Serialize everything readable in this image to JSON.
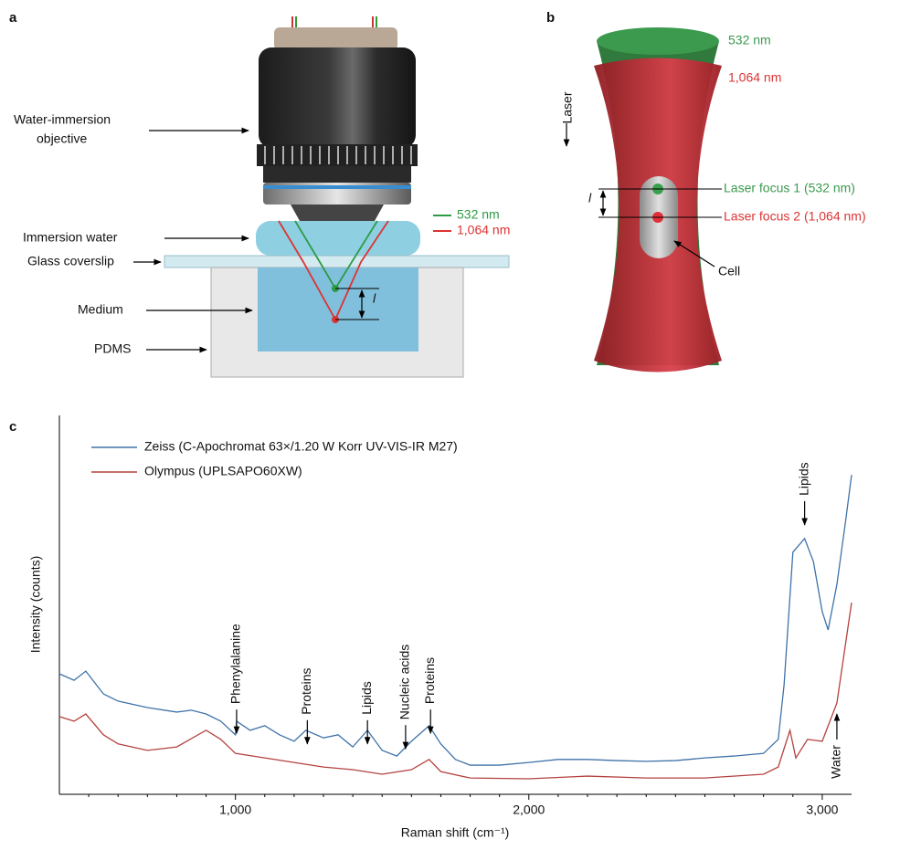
{
  "panel_a": {
    "label": "a",
    "objective_label": [
      "Water-immersion",
      "objective"
    ],
    "immersion_water": "Immersion water",
    "coverslip": "Glass coverslip",
    "medium": "Medium",
    "pdms": "PDMS",
    "legend": [
      "532 nm",
      "1,064 nm"
    ],
    "distance": "l"
  },
  "panel_b": {
    "label": "b",
    "legend": [
      "532 nm",
      "1,064 nm"
    ],
    "laser": "Laser",
    "distance": "l",
    "focus_1": "Laser focus 1 (532 nm)",
    "focus_2": "Laser focus 2 (1,064 nm)",
    "cell": "Cell"
  },
  "chart_data": {
    "type": "line",
    "panel_label": "c",
    "x_label": "Raman shift (cm⁻¹)",
    "y_label": "Intensity (counts)",
    "xlim": [
      400,
      3100
    ],
    "ylim": [
      0,
      100
    ],
    "xticks": [
      {
        "value": 1000,
        "label": "1,000"
      },
      {
        "value": 2000,
        "label": "2,000"
      },
      {
        "value": 3000,
        "label": "3,000"
      }
    ],
    "xminor_ticks": [
      500,
      600,
      700,
      800,
      900,
      1100,
      1200,
      1300,
      1400,
      1500,
      1600,
      1700,
      1800,
      1900,
      2100,
      2200,
      2300,
      2400,
      2500,
      2600,
      2700,
      2800,
      2900
    ],
    "series": [
      {
        "name": "Zeiss (C-Apochromat 63×/1.20 W Korr UV-VIS-IR M27)",
        "color": "#3f72a8",
        "x": [
          400,
          450,
          490,
          550,
          600,
          700,
          800,
          850,
          900,
          950,
          1000,
          1004,
          1050,
          1100,
          1150,
          1200,
          1240,
          1300,
          1350,
          1400,
          1450,
          1500,
          1550,
          1600,
          1660,
          1700,
          1750,
          1800,
          1900,
          2000,
          2100,
          2200,
          2300,
          2400,
          2500,
          2600,
          2700,
          2800,
          2850,
          2870,
          2900,
          2940,
          2970,
          3000,
          3020,
          3050,
          3080,
          3100
        ],
        "values": [
          31.8,
          30.1,
          32.5,
          26.5,
          24.6,
          22.9,
          21.7,
          22.2,
          21.2,
          19.3,
          15.7,
          19.3,
          16.9,
          18.1,
          15.7,
          14.0,
          16.9,
          14.9,
          15.7,
          12.5,
          16.9,
          11.6,
          10.1,
          14.0,
          18.1,
          13.3,
          9.2,
          7.7,
          7.7,
          8.4,
          9.2,
          9.2,
          8.9,
          8.7,
          8.9,
          9.6,
          10.1,
          10.8,
          14.5,
          28.9,
          63.9,
          67.5,
          61.4,
          48.2,
          43.4,
          55.4,
          72.3,
          84.3
        ]
      },
      {
        "name": "Olympus (UPLSAPO60XW)",
        "color": "#b4423f",
        "x": [
          400,
          450,
          490,
          550,
          600,
          700,
          800,
          900,
          950,
          1000,
          1100,
          1200,
          1300,
          1400,
          1500,
          1600,
          1660,
          1700,
          1800,
          2000,
          2200,
          2400,
          2600,
          2800,
          2850,
          2890,
          2910,
          2950,
          3000,
          3050,
          3100
        ],
        "values": [
          20.5,
          19.3,
          21.2,
          15.7,
          13.3,
          11.6,
          12.5,
          16.9,
          14.5,
          10.8,
          9.6,
          8.4,
          7.2,
          6.5,
          5.3,
          6.5,
          9.2,
          6.0,
          4.3,
          4.1,
          4.8,
          4.3,
          4.3,
          5.3,
          7.2,
          16.9,
          9.6,
          14.5,
          14.0,
          24.1,
          50.6
        ]
      }
    ],
    "annotations": [
      {
        "text": "Phenylalanine",
        "x": 1004,
        "y": 16.1,
        "direction": "down"
      },
      {
        "text": "Proteins",
        "x": 1245,
        "y": 13.3,
        "direction": "down"
      },
      {
        "text": "Lipids",
        "x": 1450,
        "y": 13.3,
        "direction": "down"
      },
      {
        "text": "Nucleic acids",
        "x": 1580,
        "y": 12.0,
        "direction": "down"
      },
      {
        "text": "Proteins",
        "x": 1665,
        "y": 16.1,
        "direction": "down"
      },
      {
        "text": "Lipids",
        "x": 2940,
        "y": 71.1,
        "direction": "down"
      },
      {
        "text": "Water",
        "x": 3050,
        "y": 21.2,
        "direction": "up"
      }
    ]
  }
}
